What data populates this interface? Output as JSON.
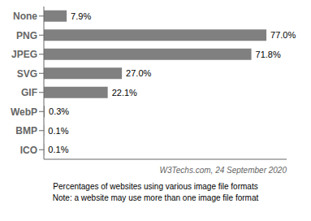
{
  "chart_data": {
    "type": "bar",
    "orientation": "horizontal",
    "categories": [
      "None",
      "PNG",
      "JPEG",
      "SVG",
      "GIF",
      "WebP",
      "BMP",
      "ICO"
    ],
    "values": [
      7.9,
      77.0,
      71.8,
      27.0,
      22.1,
      0.3,
      0.1,
      0.1
    ],
    "value_labels": [
      "7.9%",
      "77.0%",
      "71.8%",
      "27.0%",
      "22.1%",
      "0.3%",
      "0.1%",
      "0.1%"
    ],
    "color": "#808080",
    "xlim": [
      0,
      84
    ],
    "data_labels": true,
    "tick_labels": "y",
    "annotations": [
      "W3Techs.com, 24 September 2020",
      "Percentages of websites using various image file formats\nNote: a website may use more than one image file format"
    ]
  }
}
